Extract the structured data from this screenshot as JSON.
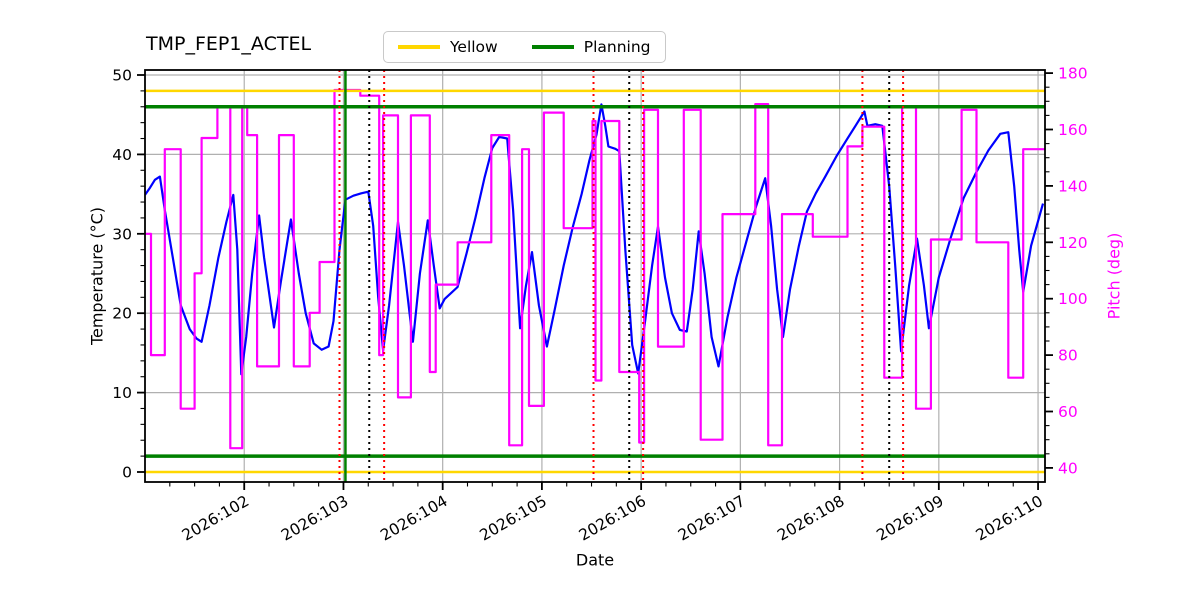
{
  "figure_title": "TMP_FEP1_ACTEL",
  "legend": {
    "items": [
      {
        "label": "Yellow",
        "color": "#ffd700"
      },
      {
        "label": "Planning",
        "color": "#008000"
      }
    ]
  },
  "chart_data": {
    "type": "line",
    "title": "TMP_FEP1_ACTEL",
    "xlabel": "Date",
    "ylabel_left": "Temperature (°C)",
    "ylabel_right": "Pitch (deg)",
    "grid": true,
    "grid_color": "#b0b0b0",
    "background": "#ffffff",
    "xlim": [
      101.0,
      110.07
    ],
    "ylim_left": [
      -1.26,
      50.63
    ],
    "ylim_right": [
      35.0,
      181.1
    ],
    "x_ticks": [
      {
        "day": 102,
        "label": "2026:102"
      },
      {
        "day": 103,
        "label": "2026:103"
      },
      {
        "day": 104,
        "label": "2026:104"
      },
      {
        "day": 105,
        "label": "2026:105"
      },
      {
        "day": 106,
        "label": "2026:106"
      },
      {
        "day": 107,
        "label": "2026:107"
      },
      {
        "day": 108,
        "label": "2026:108"
      },
      {
        "day": 109,
        "label": "2026:109"
      },
      {
        "day": 110,
        "label": "2026:110"
      }
    ],
    "x_minor_step": 0.25,
    "yticks_left": [
      0,
      10,
      20,
      30,
      40,
      50
    ],
    "y_left_minor_step": 2,
    "yticks_right": [
      40,
      60,
      80,
      100,
      120,
      140,
      160,
      180
    ],
    "y_right_minor_step": 5,
    "hlines": [
      {
        "name": "yellow-upper-limit",
        "axis": "left",
        "y": 48,
        "color": "#ffd700",
        "width": 2.5
      },
      {
        "name": "planning-upper-limit",
        "axis": "left",
        "y": 46,
        "color": "#008000",
        "width": 3.5
      },
      {
        "name": "planning-lower-limit",
        "axis": "left",
        "y": 2,
        "color": "#008000",
        "width": 3.5
      },
      {
        "name": "yellow-lower-limit",
        "axis": "left",
        "y": 0,
        "color": "#ffd700",
        "width": 2.5
      }
    ],
    "vlines": [
      {
        "name": "green-solid-event",
        "x": 103.02,
        "color": "#008000",
        "style": "solid",
        "width": 2.5
      },
      {
        "name": "red-dotted-event-1",
        "x": 102.96,
        "color": "#ff0000",
        "style": "dotted",
        "width": 2
      },
      {
        "name": "red-dotted-event-2",
        "x": 103.41,
        "color": "#ff0000",
        "style": "dotted",
        "width": 2
      },
      {
        "name": "red-dotted-event-3",
        "x": 105.52,
        "color": "#ff0000",
        "style": "dotted",
        "width": 2
      },
      {
        "name": "red-dotted-event-4",
        "x": 106.02,
        "color": "#ff0000",
        "style": "dotted",
        "width": 2
      },
      {
        "name": "red-dotted-event-5",
        "x": 108.23,
        "color": "#ff0000",
        "style": "dotted",
        "width": 2
      },
      {
        "name": "red-dotted-event-6",
        "x": 108.64,
        "color": "#ff0000",
        "style": "dotted",
        "width": 2
      },
      {
        "name": "black-dotted-event-1",
        "x": 103.26,
        "color": "#000000",
        "style": "dotted",
        "width": 2
      },
      {
        "name": "black-dotted-event-2",
        "x": 105.88,
        "color": "#000000",
        "style": "dotted",
        "width": 2
      },
      {
        "name": "black-dotted-event-3",
        "x": 108.5,
        "color": "#000000",
        "style": "dotted",
        "width": 2
      }
    ],
    "series": [
      {
        "name": "temperature",
        "axis": "left",
        "color": "#0000ff",
        "width": 2.2,
        "draw": "line",
        "points": [
          [
            101.0,
            34.9
          ],
          [
            101.05,
            35.8
          ],
          [
            101.1,
            36.8
          ],
          [
            101.15,
            37.2
          ],
          [
            101.2,
            33.0
          ],
          [
            101.28,
            27.0
          ],
          [
            101.36,
            21.0
          ],
          [
            101.45,
            18.0
          ],
          [
            101.52,
            16.8
          ],
          [
            101.57,
            16.4
          ],
          [
            101.65,
            21.0
          ],
          [
            101.74,
            27.0
          ],
          [
            101.82,
            31.5
          ],
          [
            101.89,
            34.9
          ],
          [
            101.93,
            28.0
          ],
          [
            101.97,
            12.3
          ],
          [
            102.02,
            17.0
          ],
          [
            102.08,
            25.0
          ],
          [
            102.15,
            32.3
          ],
          [
            102.2,
            27.0
          ],
          [
            102.3,
            18.2
          ],
          [
            102.37,
            24.0
          ],
          [
            102.47,
            31.8
          ],
          [
            102.55,
            25.0
          ],
          [
            102.62,
            20.0
          ],
          [
            102.7,
            16.2
          ],
          [
            102.78,
            15.4
          ],
          [
            102.85,
            15.8
          ],
          [
            102.9,
            19.0
          ],
          [
            102.96,
            28.0
          ],
          [
            103.02,
            34.3
          ],
          [
            103.1,
            34.8
          ],
          [
            103.18,
            35.1
          ],
          [
            103.25,
            35.3
          ],
          [
            103.3,
            31.0
          ],
          [
            103.35,
            22.0
          ],
          [
            103.4,
            15.3
          ],
          [
            103.46,
            21.0
          ],
          [
            103.55,
            31.5
          ],
          [
            103.61,
            26.0
          ],
          [
            103.7,
            16.4
          ],
          [
            103.77,
            25.0
          ],
          [
            103.85,
            31.7
          ],
          [
            103.91,
            26.0
          ],
          [
            103.97,
            20.6
          ],
          [
            104.02,
            21.8
          ],
          [
            104.09,
            22.6
          ],
          [
            104.15,
            23.3
          ],
          [
            104.24,
            27.5
          ],
          [
            104.33,
            32.0
          ],
          [
            104.42,
            37.0
          ],
          [
            104.5,
            40.8
          ],
          [
            104.57,
            42.2
          ],
          [
            104.65,
            42.0
          ],
          [
            104.71,
            33.0
          ],
          [
            104.78,
            18.1
          ],
          [
            104.84,
            23.5
          ],
          [
            104.9,
            27.7
          ],
          [
            104.97,
            21.0
          ],
          [
            105.05,
            15.8
          ],
          [
            105.13,
            20.5
          ],
          [
            105.22,
            26.0
          ],
          [
            105.31,
            30.8
          ],
          [
            105.4,
            35.0
          ],
          [
            105.48,
            39.3
          ],
          [
            105.55,
            42.5
          ],
          [
            105.6,
            46.3
          ],
          [
            105.64,
            43.5
          ],
          [
            105.67,
            41.0
          ],
          [
            105.74,
            40.7
          ],
          [
            105.78,
            40.4
          ],
          [
            105.84,
            28.0
          ],
          [
            105.91,
            16.0
          ],
          [
            105.97,
            12.4
          ],
          [
            106.04,
            19.0
          ],
          [
            106.11,
            26.0
          ],
          [
            106.17,
            30.9
          ],
          [
            106.24,
            24.5
          ],
          [
            106.31,
            20.0
          ],
          [
            106.39,
            17.9
          ],
          [
            106.46,
            17.7
          ],
          [
            106.52,
            23.0
          ],
          [
            106.58,
            30.3
          ],
          [
            106.64,
            25.0
          ],
          [
            106.71,
            17.0
          ],
          [
            106.78,
            13.3
          ],
          [
            106.87,
            19.5
          ],
          [
            106.96,
            24.5
          ],
          [
            107.06,
            29.0
          ],
          [
            107.16,
            33.5
          ],
          [
            107.25,
            37.0
          ],
          [
            107.31,
            31.0
          ],
          [
            107.37,
            23.0
          ],
          [
            107.43,
            17.0
          ],
          [
            107.5,
            23.0
          ],
          [
            107.59,
            28.5
          ],
          [
            107.67,
            32.8
          ],
          [
            107.76,
            35.1
          ],
          [
            107.86,
            37.3
          ],
          [
            107.97,
            39.8
          ],
          [
            108.07,
            41.8
          ],
          [
            108.16,
            43.6
          ],
          [
            108.25,
            45.4
          ],
          [
            108.28,
            43.6
          ],
          [
            108.36,
            43.8
          ],
          [
            108.43,
            43.6
          ],
          [
            108.5,
            36.0
          ],
          [
            108.56,
            26.0
          ],
          [
            108.62,
            15.2
          ],
          [
            108.7,
            23.5
          ],
          [
            108.78,
            29.4
          ],
          [
            108.85,
            23.5
          ],
          [
            108.9,
            18.1
          ],
          [
            109.0,
            24.5
          ],
          [
            109.12,
            29.5
          ],
          [
            109.25,
            34.5
          ],
          [
            109.38,
            37.8
          ],
          [
            109.5,
            40.5
          ],
          [
            109.62,
            42.6
          ],
          [
            109.7,
            42.8
          ],
          [
            109.76,
            36.0
          ],
          [
            109.81,
            28.0
          ],
          [
            109.85,
            22.7
          ],
          [
            109.93,
            28.5
          ],
          [
            110.05,
            33.8
          ]
        ]
      },
      {
        "name": "pitch",
        "axis": "right",
        "color": "#ff00ff",
        "width": 2.2,
        "draw": "step",
        "points": [
          [
            101.0,
            123
          ],
          [
            101.06,
            80
          ],
          [
            101.2,
            153
          ],
          [
            101.36,
            61
          ],
          [
            101.5,
            109
          ],
          [
            101.57,
            157
          ],
          [
            101.73,
            168
          ],
          [
            101.86,
            47
          ],
          [
            101.98,
            168
          ],
          [
            102.03,
            158
          ],
          [
            102.13,
            76
          ],
          [
            102.35,
            158
          ],
          [
            102.5,
            76
          ],
          [
            102.66,
            95
          ],
          [
            102.76,
            113
          ],
          [
            102.91,
            174
          ],
          [
            103.17,
            172
          ],
          [
            103.36,
            80
          ],
          [
            103.4,
            165
          ],
          [
            103.55,
            65
          ],
          [
            103.68,
            165
          ],
          [
            103.87,
            74
          ],
          [
            103.93,
            105
          ],
          [
            104.15,
            120
          ],
          [
            104.49,
            158
          ],
          [
            104.67,
            48
          ],
          [
            104.8,
            153
          ],
          [
            104.87,
            62
          ],
          [
            105.02,
            166
          ],
          [
            105.22,
            125
          ],
          [
            105.51,
            163
          ],
          [
            105.54,
            71
          ],
          [
            105.6,
            163
          ],
          [
            105.78,
            74
          ],
          [
            105.98,
            49
          ],
          [
            106.03,
            167
          ],
          [
            106.17,
            83
          ],
          [
            106.43,
            167
          ],
          [
            106.6,
            50
          ],
          [
            106.82,
            130
          ],
          [
            107.15,
            169
          ],
          [
            107.28,
            48
          ],
          [
            107.42,
            130
          ],
          [
            107.73,
            122
          ],
          [
            108.08,
            154
          ],
          [
            108.23,
            161
          ],
          [
            108.45,
            72
          ],
          [
            108.63,
            168
          ],
          [
            108.77,
            61
          ],
          [
            108.92,
            121
          ],
          [
            109.23,
            167
          ],
          [
            109.38,
            120
          ],
          [
            109.7,
            72
          ],
          [
            109.85,
            153
          ],
          [
            110.07,
            153
          ]
        ]
      }
    ]
  }
}
